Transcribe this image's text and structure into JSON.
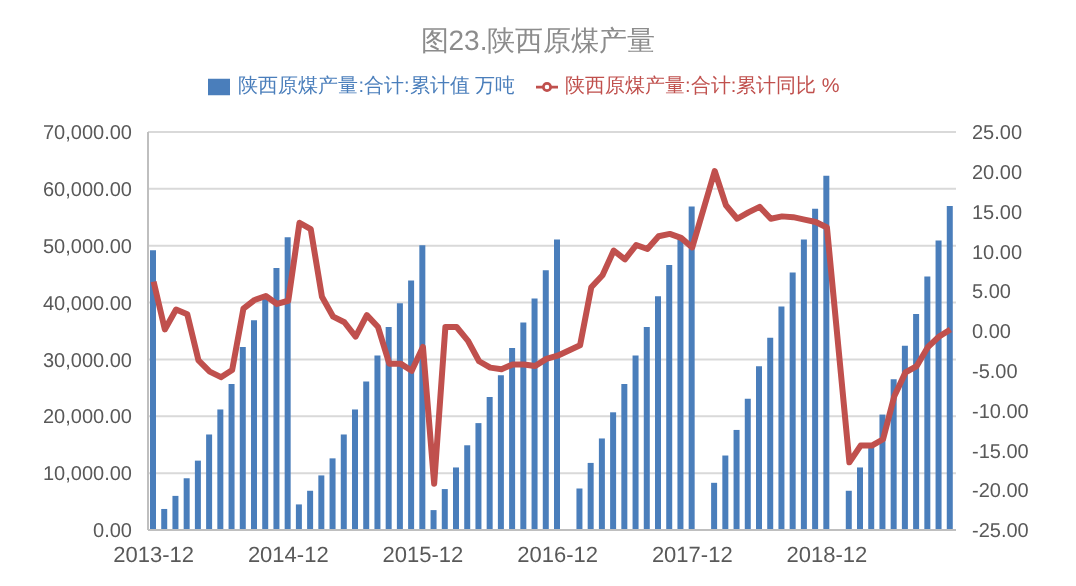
{
  "chart_data": {
    "type": "bar",
    "title": "图23.陕西原煤产量",
    "categories": [
      "2013-12",
      null,
      null,
      null,
      null,
      null,
      null,
      null,
      null,
      null,
      null,
      null,
      "2014-12",
      null,
      null,
      null,
      null,
      null,
      null,
      null,
      null,
      null,
      null,
      null,
      "2015-12",
      null,
      null,
      null,
      null,
      null,
      null,
      null,
      null,
      null,
      null,
      null,
      "2016-12",
      null,
      null,
      null,
      null,
      null,
      null,
      null,
      null,
      null,
      null,
      null,
      "2017-12",
      null,
      null,
      null,
      null,
      null,
      null,
      null,
      null,
      null,
      null,
      null,
      "2018-12",
      null,
      null,
      null,
      null,
      null,
      null,
      null,
      null,
      null,
      null,
      null
    ],
    "series": [
      {
        "name": "陕西原煤产量:合计:累计值 万吨",
        "color": "#4a7ebb",
        "values": [
          49200,
          3700,
          6000,
          9100,
          12200,
          16800,
          21200,
          25700,
          32200,
          36900,
          41400,
          46100,
          51500,
          4500,
          6900,
          9600,
          12600,
          16800,
          21200,
          26100,
          30700,
          35700,
          39900,
          43900,
          50100,
          3500,
          7200,
          11000,
          14900,
          18800,
          23400,
          27200,
          32000,
          36500,
          40700,
          45700,
          51100,
          null,
          7300,
          11800,
          16100,
          20700,
          25700,
          30700,
          35700,
          41100,
          46600,
          51500,
          56900,
          null,
          8300,
          13100,
          17600,
          23100,
          28800,
          33800,
          39300,
          45300,
          51100,
          56500,
          62300,
          null,
          6900,
          11000,
          14800,
          20300,
          26500,
          32400,
          38000,
          44600,
          50900,
          57000
        ]
      },
      {
        "name": "陕西原煤产量:合计:累计同比 %",
        "type": "line",
        "axis": "y2",
        "color": "#c0504d",
        "values": [
          6.2,
          0.2,
          2.7,
          2.1,
          -3.7,
          -5.1,
          -5.8,
          -4.9,
          2.8,
          3.9,
          4.4,
          3.4,
          3.8,
          13.6,
          12.8,
          4.3,
          1.8,
          1.1,
          -0.7,
          2.0,
          0.5,
          -4.1,
          -4.1,
          -5.0,
          -2.0,
          -19.2,
          0.5,
          0.5,
          -1.2,
          -3.8,
          -4.6,
          -4.8,
          -4.2,
          -4.2,
          -4.4,
          -3.5,
          -3.1,
          null,
          -1.8,
          5.5,
          7.0,
          10.1,
          9.0,
          10.8,
          10.3,
          11.9,
          12.2,
          11.7,
          10.5,
          null,
          20.1,
          15.8,
          14.1,
          14.9,
          15.6,
          14.1,
          14.4,
          14.3,
          14.0,
          13.7,
          13.0,
          null,
          -16.5,
          -14.4,
          -14.4,
          -13.6,
          -8.2,
          -5.2,
          -4.4,
          -2.0,
          -0.7,
          0.2
        ]
      }
    ],
    "ylim": [
      0,
      70000
    ],
    "yticks": [
      {
        "value": 0,
        "label": "0.00"
      },
      {
        "value": 10000,
        "label": "10,000.00"
      },
      {
        "value": 20000,
        "label": "20,000.00"
      },
      {
        "value": 30000,
        "label": "30,000.00"
      },
      {
        "value": 40000,
        "label": "40,000.00"
      },
      {
        "value": 50000,
        "label": "50,000.00"
      },
      {
        "value": 60000,
        "label": "60,000.00"
      },
      {
        "value": 70000,
        "label": "70,000.00"
      }
    ],
    "y2lim": [
      -25,
      25
    ],
    "y2ticks": [
      {
        "value": -25,
        "label": "-25.00"
      },
      {
        "value": -20,
        "label": "-20.00"
      },
      {
        "value": -15,
        "label": "-15.00"
      },
      {
        "value": -10,
        "label": "-10.00"
      },
      {
        "value": -5,
        "label": "-5.00"
      },
      {
        "value": 0,
        "label": "0.00"
      },
      {
        "value": 5,
        "label": "5.00"
      },
      {
        "value": 10,
        "label": "10.00"
      },
      {
        "value": 15,
        "label": "15.00"
      },
      {
        "value": 20,
        "label": "20.00"
      },
      {
        "value": 25,
        "label": "25.00"
      }
    ],
    "grid": "y",
    "legend": "top",
    "marker": "none",
    "line_style": "solid"
  }
}
